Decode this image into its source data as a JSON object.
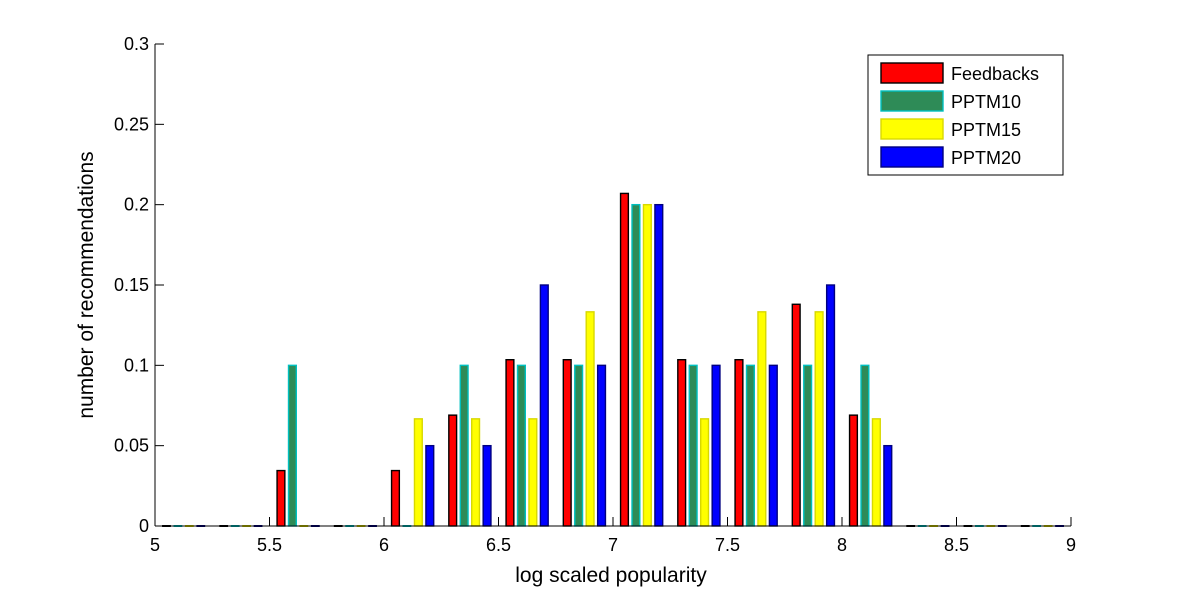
{
  "chart_data": {
    "type": "bar",
    "title": "",
    "xlabel": "log scaled popularity",
    "ylabel": "number of recommendations",
    "xlim": [
      5,
      9
    ],
    "ylim": [
      0,
      0.3
    ],
    "xticks": [
      5,
      5.5,
      6,
      6.5,
      7,
      7.5,
      8,
      8.5,
      9
    ],
    "xtick_labels": [
      "5",
      "5.5",
      "6",
      "6.5",
      "7",
      "7.5",
      "8",
      "8.5",
      "9"
    ],
    "yticks": [
      0,
      0.05,
      0.1,
      0.15,
      0.2,
      0.25,
      0.3
    ],
    "ytick_labels": [
      "0",
      "0.05",
      "0.1",
      "0.15",
      "0.2",
      "0.25",
      "0.3"
    ],
    "grid": false,
    "legend_position": "top-right",
    "bin_centers": [
      5.125,
      5.375,
      5.625,
      5.875,
      6.125,
      6.375,
      6.625,
      6.875,
      7.125,
      7.375,
      7.625,
      7.875,
      8.125,
      8.375,
      8.625,
      8.875
    ],
    "series": [
      {
        "name": "Feedbacks",
        "color": "#ff0000",
        "edge": "#000000",
        "values": [
          0,
          0,
          0.0345,
          0,
          0.0345,
          0.069,
          0.1035,
          0.1035,
          0.207,
          0.1035,
          0.1035,
          0.138,
          0.069,
          0,
          0,
          0
        ]
      },
      {
        "name": "PPTM10",
        "color": "#2e8b57",
        "edge": "#00c0c0",
        "values": [
          0,
          0,
          0.1,
          0,
          0,
          0.1,
          0.1,
          0.1,
          0.2,
          0.1,
          0.1,
          0.1,
          0.1,
          0,
          0,
          0
        ]
      },
      {
        "name": "PPTM15",
        "color": "#ffff00",
        "edge": "#d8d800",
        "values": [
          0,
          0,
          0,
          0,
          0.0667,
          0.0667,
          0.0667,
          0.1333,
          0.2,
          0.0667,
          0.1333,
          0.1333,
          0.0667,
          0,
          0,
          0
        ]
      },
      {
        "name": "PPTM20",
        "color": "#0000ff",
        "edge": "#000080",
        "values": [
          0,
          0,
          0,
          0,
          0.05,
          0.05,
          0.15,
          0.1,
          0.2,
          0.1,
          0.1,
          0.15,
          0.05,
          0,
          0,
          0
        ]
      }
    ]
  }
}
